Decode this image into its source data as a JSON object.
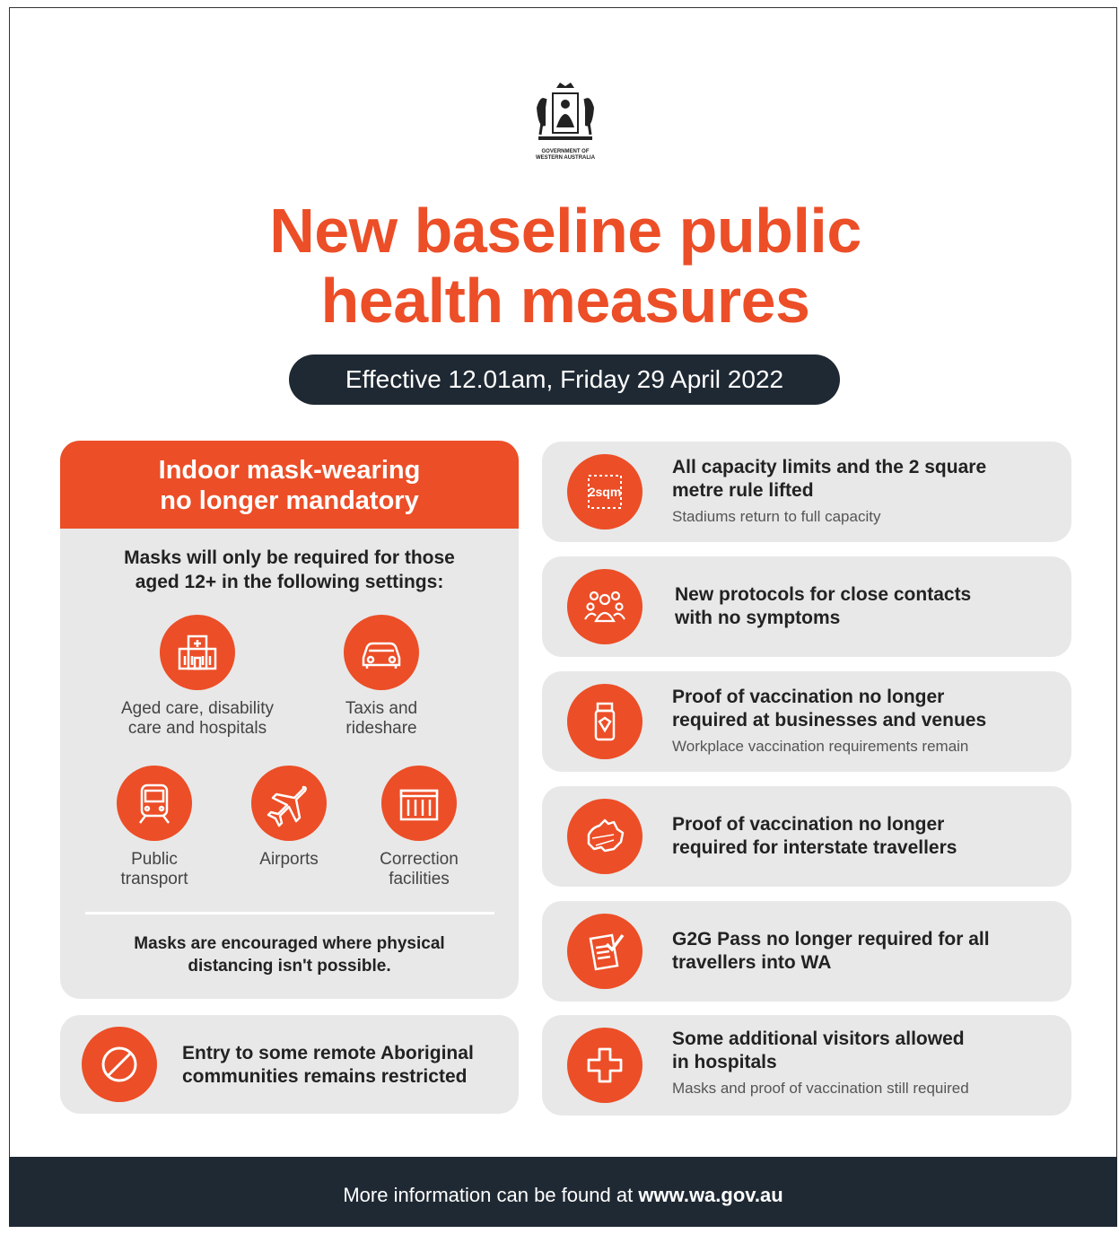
{
  "crest": {
    "text_line1": "GOVERNMENT OF",
    "text_line2": "WESTERN AUSTRALIA"
  },
  "title": {
    "line1": "New baseline public",
    "line2": "health measures"
  },
  "effective": "Effective 12.01am, Friday 29 April 2022",
  "left_panel": {
    "heading_line1": "Indoor mask-wearing",
    "heading_line2": "no longer mandatory",
    "intro_line1": "Masks will only be required for those",
    "intro_line2": "aged 12+ in the following settings:",
    "settings": [
      {
        "line1": "Aged care, disability",
        "line2": "care and hospitals",
        "icon": "hospital-icon"
      },
      {
        "line1": "Taxis and",
        "line2": "rideshare",
        "icon": "car-icon"
      },
      {
        "line1": "Public",
        "line2": "transport",
        "icon": "train-icon"
      },
      {
        "line1": "Airports",
        "line2": "",
        "icon": "plane-icon"
      },
      {
        "line1": "Correction",
        "line2": "facilities",
        "icon": "prison-icon"
      }
    ],
    "encourage_line1": "Masks are encouraged where physical",
    "encourage_line2": "distancing isn't possible."
  },
  "bottom_left": {
    "line1": "Entry to some remote Aboriginal",
    "line2": "communities remains restricted",
    "icon": "prohibited-icon"
  },
  "cards": [
    {
      "line1": "All capacity limits and the 2 square",
      "line2": "metre rule lifted",
      "sub": "Stadiums return to full capacity",
      "icon": "square-metre-icon",
      "icon_text": "2sqm"
    },
    {
      "line1": "New protocols for close contacts",
      "line2": "with no symptoms",
      "sub": "",
      "icon": "people-group-icon"
    },
    {
      "line1": "Proof of vaccination no longer",
      "line2": "required at businesses and venues",
      "sub": "Workplace vaccination requirements remain",
      "icon": "vaccine-vial-icon"
    },
    {
      "line1": "Proof of vaccination no longer",
      "line2": "required for interstate travellers",
      "sub": "",
      "icon": "australia-map-icon"
    },
    {
      "line1": "G2G Pass no longer required for all",
      "line2": "travellers into WA",
      "sub": "",
      "icon": "checklist-icon"
    },
    {
      "line1": "Some additional visitors allowed",
      "line2": "in hospitals",
      "sub": "Masks and proof of vaccination still required",
      "icon": "medical-cross-icon"
    }
  ],
  "footer": {
    "prefix": "More information can be found at",
    "url": "www.wa.gov.au"
  },
  "colors": {
    "accent": "#ec4e27",
    "dark": "#1f2933",
    "panel": "#e8e8e8"
  }
}
